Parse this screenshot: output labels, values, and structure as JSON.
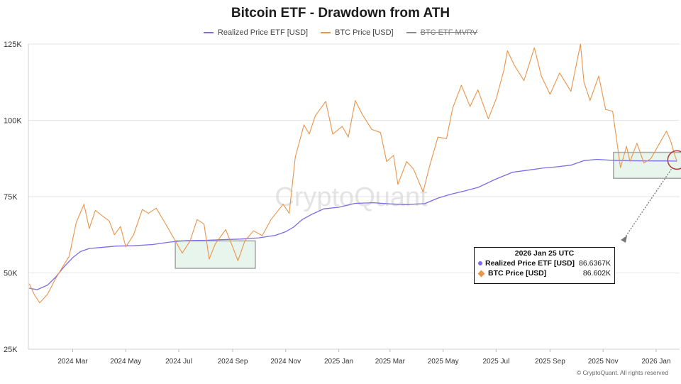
{
  "chart_data": {
    "type": "line",
    "title": "Bitcoin ETF - Drawdown from ATH",
    "legend": [
      {
        "name": "Realized Price ETF [USD]",
        "color": "#7b6ce8",
        "visible": true
      },
      {
        "name": "BTC Price [USD]",
        "color": "#e8944a",
        "visible": true
      },
      {
        "name": "BTC ETF MVRV",
        "color": "#8a8a8a",
        "visible": false
      }
    ],
    "y_ticks": [
      "125K",
      "100K",
      "75K",
      "50K",
      "25K"
    ],
    "ylim": [
      25000,
      125000
    ],
    "xlim": [
      "2024-01-10",
      "2026-01-28"
    ],
    "x_ticks": [
      {
        "label": "2024 Mar",
        "date": "2024-03-01"
      },
      {
        "label": "2024 May",
        "date": "2024-05-01"
      },
      {
        "label": "2024 Jul",
        "date": "2024-07-01"
      },
      {
        "label": "2024 Sep",
        "date": "2024-09-01"
      },
      {
        "label": "2024 Nov",
        "date": "2024-11-01"
      },
      {
        "label": "2025 Jan",
        "date": "2025-01-01"
      },
      {
        "label": "2025 Mar",
        "date": "2025-03-01"
      },
      {
        "label": "2025 May",
        "date": "2025-05-01"
      },
      {
        "label": "2025 Jul",
        "date": "2025-07-01"
      },
      {
        "label": "2025 Sep",
        "date": "2025-09-01"
      },
      {
        "label": "2025 Nov",
        "date": "2025-11-01"
      },
      {
        "label": "2026 Jan",
        "date": "2026-01-01"
      }
    ],
    "series": [
      {
        "name": "Realized Price ETF [USD]",
        "color": "#7b6ce8",
        "points": [
          [
            "2024-01-11",
            45000
          ],
          [
            "2024-01-20",
            44500
          ],
          [
            "2024-02-01",
            46000
          ],
          [
            "2024-02-10",
            48500
          ],
          [
            "2024-02-20",
            52000
          ],
          [
            "2024-03-01",
            55000
          ],
          [
            "2024-03-10",
            57000
          ],
          [
            "2024-03-20",
            58000
          ],
          [
            "2024-04-01",
            58300
          ],
          [
            "2024-04-20",
            58800
          ],
          [
            "2024-05-10",
            58900
          ],
          [
            "2024-06-01",
            59300
          ],
          [
            "2024-06-20",
            60100
          ],
          [
            "2024-07-10",
            60600
          ],
          [
            "2024-08-01",
            60700
          ],
          [
            "2024-08-20",
            60900
          ],
          [
            "2024-09-10",
            61100
          ],
          [
            "2024-10-01",
            61500
          ],
          [
            "2024-10-20",
            62300
          ],
          [
            "2024-11-01",
            63500
          ],
          [
            "2024-11-10",
            65000
          ],
          [
            "2024-11-20",
            67500
          ],
          [
            "2024-12-01",
            69200
          ],
          [
            "2024-12-15",
            71000
          ],
          [
            "2025-01-01",
            71500
          ],
          [
            "2025-01-20",
            72800
          ],
          [
            "2025-02-10",
            73000
          ],
          [
            "2025-03-01",
            72600
          ],
          [
            "2025-03-20",
            72400
          ],
          [
            "2025-04-10",
            72700
          ],
          [
            "2025-04-25",
            74500
          ],
          [
            "2025-05-10",
            75800
          ],
          [
            "2025-05-25",
            76800
          ],
          [
            "2025-06-10",
            78000
          ],
          [
            "2025-07-01",
            80800
          ],
          [
            "2025-07-20",
            83000
          ],
          [
            "2025-08-10",
            83800
          ],
          [
            "2025-08-25",
            84400
          ],
          [
            "2025-09-10",
            84800
          ],
          [
            "2025-09-25",
            85300
          ],
          [
            "2025-10-10",
            86800
          ],
          [
            "2025-10-25",
            87200
          ],
          [
            "2025-11-10",
            86900
          ],
          [
            "2025-11-25",
            86800
          ],
          [
            "2025-12-15",
            86700
          ],
          [
            "2026-01-10",
            86700
          ],
          [
            "2026-01-25",
            86637
          ]
        ]
      },
      {
        "name": "BTC Price [USD]",
        "color": "#e8944a",
        "points": [
          [
            "2024-01-11",
            46500
          ],
          [
            "2024-01-17",
            42800
          ],
          [
            "2024-01-23",
            40200
          ],
          [
            "2024-02-01",
            43000
          ],
          [
            "2024-02-10",
            48000
          ],
          [
            "2024-02-18",
            51800
          ],
          [
            "2024-02-26",
            55500
          ],
          [
            "2024-03-05",
            66500
          ],
          [
            "2024-03-10",
            69800
          ],
          [
            "2024-03-14",
            72500
          ],
          [
            "2024-03-20",
            64500
          ],
          [
            "2024-03-27",
            70500
          ],
          [
            "2024-04-05",
            68500
          ],
          [
            "2024-04-12",
            67000
          ],
          [
            "2024-04-18",
            62500
          ],
          [
            "2024-04-25",
            65200
          ],
          [
            "2024-05-01",
            58500
          ],
          [
            "2024-05-10",
            62500
          ],
          [
            "2024-05-20",
            70800
          ],
          [
            "2024-05-27",
            69500
          ],
          [
            "2024-06-05",
            71200
          ],
          [
            "2024-06-15",
            66500
          ],
          [
            "2024-06-25",
            61500
          ],
          [
            "2024-07-05",
            56500
          ],
          [
            "2024-07-14",
            60500
          ],
          [
            "2024-07-22",
            67500
          ],
          [
            "2024-07-30",
            66000
          ],
          [
            "2024-08-05",
            54500
          ],
          [
            "2024-08-12",
            59500
          ],
          [
            "2024-08-24",
            64200
          ],
          [
            "2024-09-01",
            58500
          ],
          [
            "2024-09-07",
            54000
          ],
          [
            "2024-09-15",
            60500
          ],
          [
            "2024-09-25",
            63800
          ],
          [
            "2024-10-05",
            62200
          ],
          [
            "2024-10-15",
            67500
          ],
          [
            "2024-10-29",
            72500
          ],
          [
            "2024-11-05",
            69500
          ],
          [
            "2024-11-12",
            88000
          ],
          [
            "2024-11-22",
            98500
          ],
          [
            "2024-11-28",
            95500
          ],
          [
            "2024-12-05",
            101500
          ],
          [
            "2024-12-17",
            106200
          ],
          [
            "2024-12-25",
            95500
          ],
          [
            "2025-01-05",
            98000
          ],
          [
            "2025-01-12",
            94500
          ],
          [
            "2025-01-20",
            106500
          ],
          [
            "2025-01-28",
            102000
          ],
          [
            "2025-02-08",
            97000
          ],
          [
            "2025-02-18",
            96000
          ],
          [
            "2025-02-25",
            86500
          ],
          [
            "2025-03-05",
            88500
          ],
          [
            "2025-03-10",
            79000
          ],
          [
            "2025-03-20",
            86500
          ],
          [
            "2025-03-28",
            84000
          ],
          [
            "2025-04-08",
            76500
          ],
          [
            "2025-04-15",
            84500
          ],
          [
            "2025-04-25",
            94500
          ],
          [
            "2025-05-05",
            94000
          ],
          [
            "2025-05-12",
            104000
          ],
          [
            "2025-05-22",
            111500
          ],
          [
            "2025-06-01",
            104500
          ],
          [
            "2025-06-10",
            110000
          ],
          [
            "2025-06-22",
            100500
          ],
          [
            "2025-07-01",
            107000
          ],
          [
            "2025-07-10",
            116500
          ],
          [
            "2025-07-14",
            122800
          ],
          [
            "2025-07-22",
            118000
          ],
          [
            "2025-08-02",
            113000
          ],
          [
            "2025-08-14",
            123800
          ],
          [
            "2025-08-22",
            114500
          ],
          [
            "2025-09-01",
            108500
          ],
          [
            "2025-09-12",
            115500
          ],
          [
            "2025-09-25",
            109500
          ],
          [
            "2025-10-06",
            125000
          ],
          [
            "2025-10-10",
            112500
          ],
          [
            "2025-10-17",
            106500
          ],
          [
            "2025-10-27",
            114500
          ],
          [
            "2025-11-04",
            103500
          ],
          [
            "2025-11-12",
            103000
          ],
          [
            "2025-11-21",
            84500
          ],
          [
            "2025-11-28",
            91500
          ],
          [
            "2025-12-02",
            86500
          ],
          [
            "2025-12-10",
            92500
          ],
          [
            "2025-12-18",
            86000
          ],
          [
            "2025-12-26",
            87500
          ],
          [
            "2026-01-05",
            92500
          ],
          [
            "2026-01-13",
            96500
          ],
          [
            "2026-01-18",
            93000
          ],
          [
            "2026-01-22",
            89000
          ],
          [
            "2026-01-25",
            86602
          ]
        ]
      }
    ],
    "highlight_boxes": [
      {
        "x0": "2024-06-27",
        "x1": "2024-09-27",
        "y0": 51500,
        "y1": 60500
      },
      {
        "x0": "2025-11-13",
        "x1": "2026-01-31",
        "y0": 81000,
        "y1": 89500
      }
    ],
    "annotation": {
      "date": "2026-01-25",
      "value": 87000
    },
    "tooltip": {
      "date": "2026 Jan 25 UTC",
      "rows": [
        {
          "name": "Realized Price ETF [USD]",
          "value": "86.6367K",
          "color": "#7b6ce8",
          "marker": "circle"
        },
        {
          "name": "BTC Price [USD]",
          "value": "86.602K",
          "color": "#e8944a",
          "marker": "diamond"
        }
      ]
    },
    "watermark": "CryptoQuant",
    "copyright": "© CryptoQuant. All rights reserved"
  }
}
